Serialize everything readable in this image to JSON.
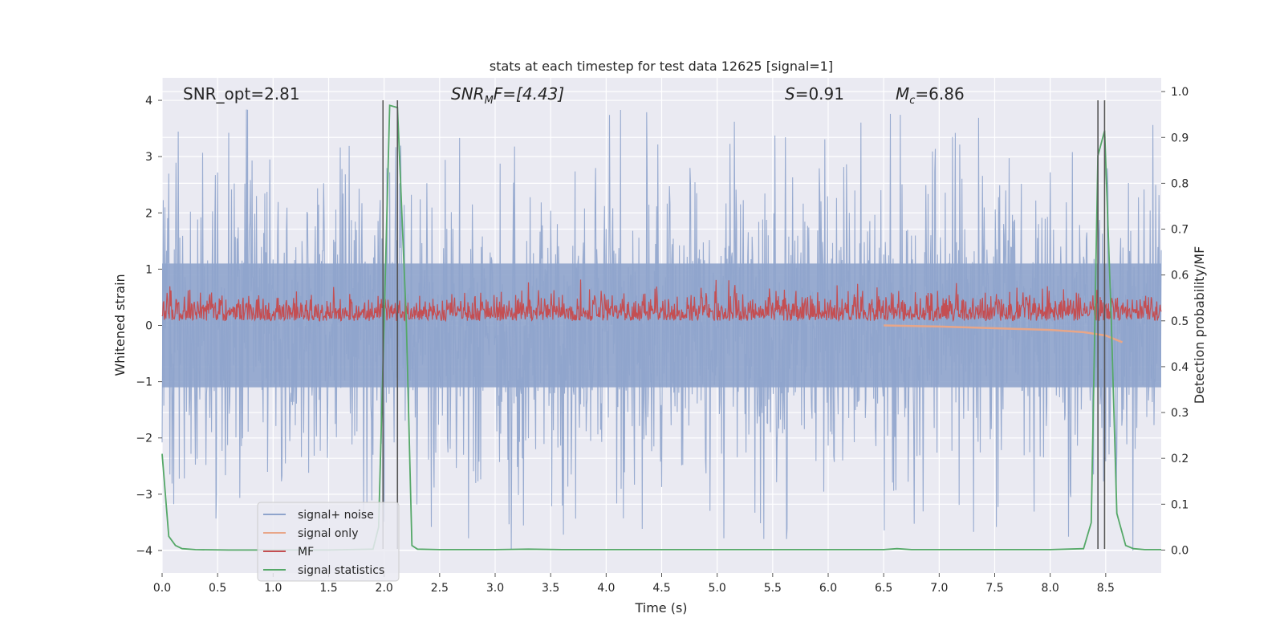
{
  "chart_data": {
    "type": "line",
    "title": "stats at each timestep for test data 12625 [signal=1]",
    "xlabel": "Time (s)",
    "ylabel": "Whitened strain",
    "ylabel_right": "Detection probability/MF",
    "xlim": [
      0.0,
      9.0
    ],
    "ylim": [
      -4.4,
      4.4
    ],
    "ylim_right": [
      -0.05,
      1.03
    ],
    "x_ticks": [
      "0.0",
      "0.5",
      "1.0",
      "1.5",
      "2.0",
      "2.5",
      "3.0",
      "3.5",
      "4.0",
      "4.5",
      "5.0",
      "5.5",
      "6.0",
      "6.5",
      "7.0",
      "7.5",
      "8.0",
      "8.5"
    ],
    "y_ticks": [
      "4",
      "3",
      "2",
      "1",
      "0",
      "−1",
      "−2",
      "−3",
      "−4"
    ],
    "y_right_ticks": [
      "1.0",
      "0.9",
      "0.8",
      "0.7",
      "0.6",
      "0.5",
      "0.4",
      "0.3",
      "0.2",
      "0.1",
      "0.0"
    ],
    "grid": true,
    "legend_position": "lower-left",
    "annotations": {
      "snr_opt": "SNR_opt=2.81",
      "snr_mf_prefix": "SNR",
      "snr_mf_sub": "M",
      "snr_mf_suffix": "F=[4.43]",
      "s_var": "S",
      "s_val": "=0.91",
      "mc_var": "M",
      "mc_sub": "c",
      "mc_val": "=6.86"
    },
    "vertical_lines_x": [
      1.99,
      2.12,
      8.43,
      8.49
    ],
    "series": [
      {
        "name": "signal+ noise",
        "color": "#8fa4cc",
        "axis": "left",
        "noise_band": {
          "x_range": [
            0.0,
            9.0
          ],
          "typical_amplitude": 1.6,
          "peak_amplitude": 4.0
        }
      },
      {
        "name": "signal only",
        "color": "#e8a688",
        "axis": "left",
        "x": [
          6.5,
          7.0,
          7.5,
          8.0,
          8.3,
          8.5,
          8.65
        ],
        "y": [
          0.0,
          -0.02,
          -0.05,
          -0.08,
          -0.12,
          -0.18,
          -0.3
        ]
      },
      {
        "name": "MF",
        "color": "#c44e52",
        "axis": "right",
        "noise_band": {
          "x_range": [
            0.0,
            9.0
          ],
          "baseline": 0.5,
          "typical_amplitude": 0.05,
          "peak_amplitude": 0.09
        }
      },
      {
        "name": "signal statistics",
        "color": "#55a868",
        "axis": "right",
        "x": [
          0.0,
          0.06,
          0.12,
          0.18,
          0.3,
          0.6,
          1.0,
          1.5,
          1.9,
          1.95,
          2.0,
          2.05,
          2.12,
          2.2,
          2.25,
          2.3,
          2.5,
          3.0,
          3.3,
          3.6,
          4.0,
          5.0,
          6.0,
          6.5,
          6.62,
          6.75,
          7.0,
          8.0,
          8.3,
          8.37,
          8.43,
          8.49,
          8.55,
          8.6,
          8.68,
          8.75,
          8.85,
          9.0
        ],
        "y": [
          0.21,
          0.03,
          0.01,
          0.003,
          0.001,
          0.0,
          0.0,
          0.0,
          0.002,
          0.05,
          0.5,
          0.97,
          0.965,
          0.5,
          0.01,
          0.002,
          0.001,
          0.001,
          0.002,
          0.001,
          0.001,
          0.001,
          0.001,
          0.001,
          0.003,
          0.001,
          0.001,
          0.001,
          0.003,
          0.06,
          0.86,
          0.915,
          0.5,
          0.08,
          0.01,
          0.003,
          0.001,
          0.001
        ]
      }
    ]
  }
}
